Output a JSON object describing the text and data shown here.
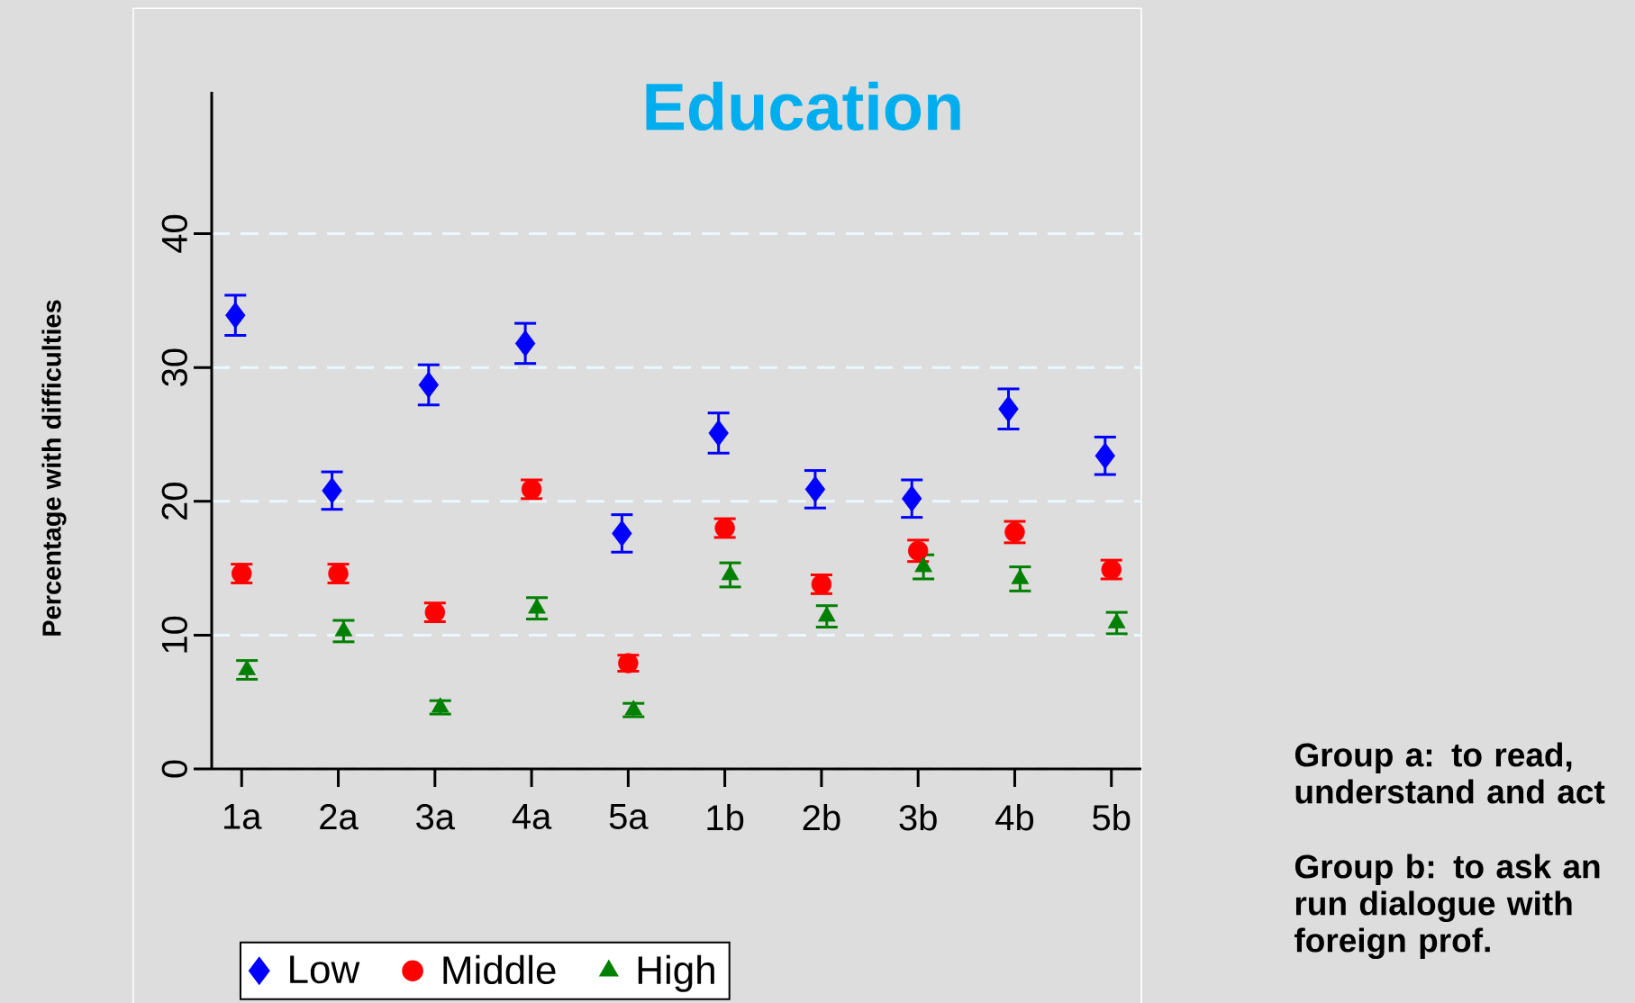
{
  "chart_data": {
    "type": "scatter",
    "title": "Education",
    "ylabel": "Percentage with difficulties",
    "categories": [
      "1a",
      "2a",
      "3a",
      "4a",
      "5a",
      "1b",
      "2b",
      "3b",
      "4b",
      "5b"
    ],
    "series": [
      {
        "name": "Low",
        "color": "#0000ff",
        "marker": "diamond",
        "values": [
          33.9,
          20.8,
          28.7,
          31.8,
          17.6,
          25.1,
          20.9,
          20.2,
          26.9,
          23.4
        ],
        "errors": [
          1.5,
          1.4,
          1.5,
          1.5,
          1.4,
          1.5,
          1.4,
          1.4,
          1.5,
          1.4
        ]
      },
      {
        "name": "Middle",
        "color": "#ff0000",
        "marker": "circle",
        "values": [
          14.6,
          14.6,
          11.7,
          20.9,
          7.9,
          18.0,
          13.8,
          16.3,
          17.7,
          14.9
        ],
        "errors": [
          0.7,
          0.7,
          0.7,
          0.7,
          0.6,
          0.7,
          0.7,
          0.8,
          0.8,
          0.7
        ]
      },
      {
        "name": "High",
        "color": "#008000",
        "marker": "triangle",
        "values": [
          7.4,
          10.3,
          4.6,
          12.0,
          4.4,
          14.5,
          11.4,
          15.1,
          14.2,
          10.9
        ],
        "errors": [
          0.7,
          0.8,
          0.5,
          0.8,
          0.5,
          0.9,
          0.8,
          0.9,
          0.9,
          0.8
        ]
      }
    ],
    "ylim": [
      0,
      50.6
    ],
    "yticks": [
      0,
      10,
      20,
      30,
      40
    ],
    "grid": "y",
    "legend": "bottom",
    "annotations": [
      "Group a: to read, understand and act",
      "Group b: to ask an run dialogue with foreign prof."
    ]
  }
}
